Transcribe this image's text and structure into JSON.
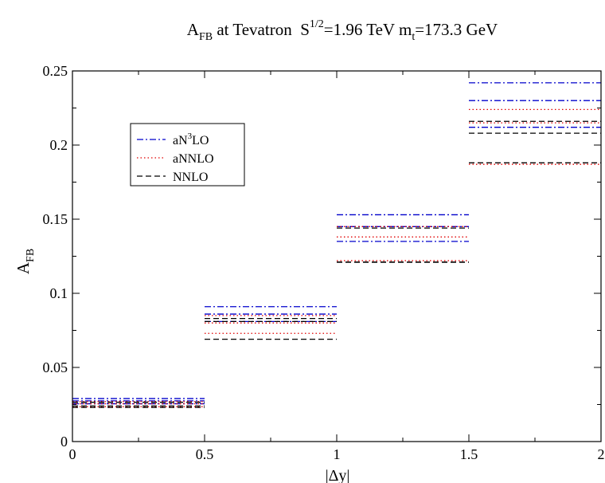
{
  "chart_data": {
    "type": "line",
    "title": {
      "base": "A",
      "base_sub": "FB",
      "mid": " at Tevatron  S",
      "mid_sup": "1/2",
      "energy": "=1.96 TeV  m",
      "mass_sub": "t",
      "mass": "=173.3 GeV"
    },
    "xlabel": "|Δy|",
    "ylabel": {
      "base": "A",
      "sub": "FB"
    },
    "xlim": [
      0,
      2
    ],
    "ylim": [
      0,
      0.25
    ],
    "x_ticks": [
      0,
      0.5,
      1,
      1.5,
      2
    ],
    "x_tick_labels": [
      "0",
      "0.5",
      "1",
      "1.5",
      "2"
    ],
    "y_ticks": [
      0,
      0.05,
      0.1,
      0.15,
      0.2,
      0.25
    ],
    "y_tick_labels": [
      "0",
      "0.05",
      "0.1",
      "0.15",
      "0.2",
      "0.25"
    ],
    "bins": [
      [
        0,
        0.5
      ],
      [
        0.5,
        1.0
      ],
      [
        1.0,
        1.5
      ],
      [
        1.5,
        2.0
      ]
    ],
    "legend": {
      "placement": "upper-left"
    },
    "series": [
      {
        "name": {
          "base": "aN",
          "sup": "3",
          "rest": "LO"
        },
        "color": "#0000cc",
        "dash": "dash-dot",
        "central": [
          0.0275,
          0.086,
          0.145,
          0.23
        ],
        "upper": [
          0.029,
          0.091,
          0.153,
          0.242
        ],
        "lower": [
          0.0255,
          0.081,
          0.135,
          0.212
        ]
      },
      {
        "name": "aNNLO",
        "color": "#e00000",
        "dash": "dotted",
        "central": [
          0.0255,
          0.073,
          0.138,
          0.224
        ],
        "upper": [
          0.027,
          0.085,
          0.145,
          0.215
        ],
        "lower": [
          0.0235,
          0.08,
          0.122,
          0.187
        ]
      },
      {
        "name": "NNLO",
        "color": "#000000",
        "dash": "dashed",
        "central": [
          0.024,
          0.069,
          0.121,
          0.208
        ],
        "upper": [
          0.0265,
          0.083,
          0.144,
          0.216
        ],
        "lower": [
          0.023,
          0.081,
          0.121,
          0.188
        ]
      }
    ]
  }
}
